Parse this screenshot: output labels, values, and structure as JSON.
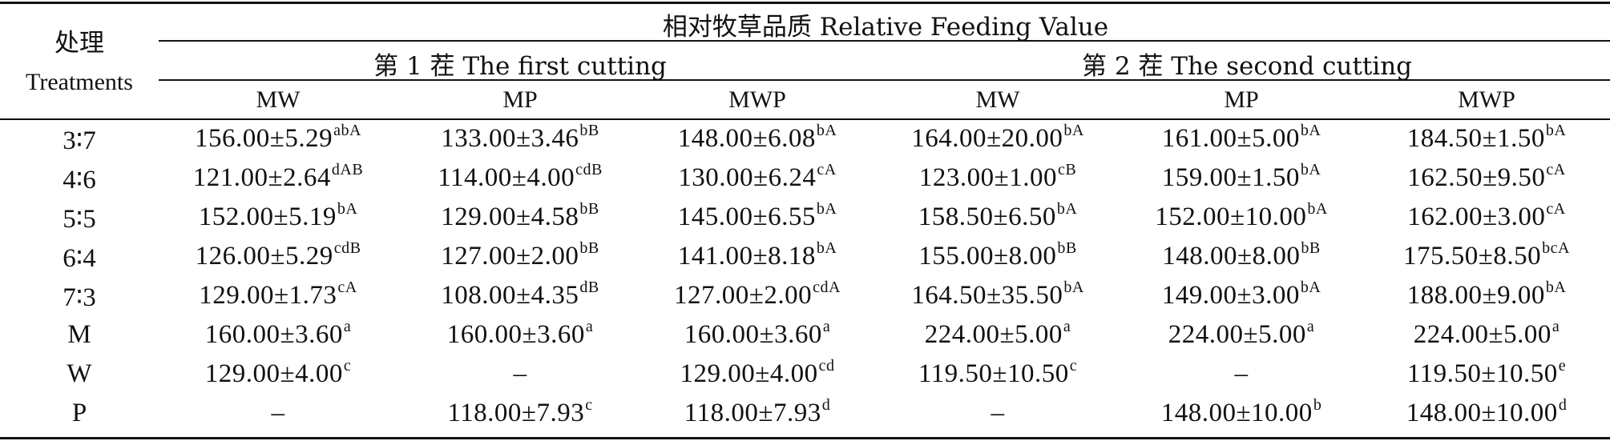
{
  "header": {
    "treatment_cn": "处理",
    "treatment_en": "Treatments",
    "main_title": "相对牧草品质 Relative Feeding Value",
    "cutting1": "第 1 茬 The first cutting",
    "cutting2": "第 2 茬 The second cutting",
    "columns": [
      "MW",
      "MP",
      "MWP",
      "MW",
      "MP",
      "MWP"
    ]
  },
  "rows": [
    {
      "label": "3∶7",
      "cells": [
        {
          "v": "156.00±5.29",
          "s": "abA"
        },
        {
          "v": "133.00±3.46",
          "s": "bB"
        },
        {
          "v": "148.00±6.08",
          "s": "bA"
        },
        {
          "v": "164.00±20.00",
          "s": "bA"
        },
        {
          "v": "161.00±5.00",
          "s": "bA"
        },
        {
          "v": "184.50±1.50",
          "s": "bA"
        }
      ]
    },
    {
      "label": "4∶6",
      "cells": [
        {
          "v": "121.00±2.64",
          "s": "dAB"
        },
        {
          "v": "114.00±4.00",
          "s": "cdB"
        },
        {
          "v": "130.00±6.24",
          "s": "cA"
        },
        {
          "v": "123.00±1.00",
          "s": "cB"
        },
        {
          "v": "159.00±1.50",
          "s": "bA"
        },
        {
          "v": "162.50±9.50",
          "s": "cA"
        }
      ]
    },
    {
      "label": "5∶5",
      "cells": [
        {
          "v": "152.00±5.19",
          "s": "bA"
        },
        {
          "v": "129.00±4.58",
          "s": "bB"
        },
        {
          "v": "145.00±6.55",
          "s": "bA"
        },
        {
          "v": "158.50±6.50",
          "s": "bA"
        },
        {
          "v": "152.00±10.00",
          "s": "bA"
        },
        {
          "v": "162.00±3.00",
          "s": "cA"
        }
      ]
    },
    {
      "label": "6∶4",
      "cells": [
        {
          "v": "126.00±5.29",
          "s": "cdB"
        },
        {
          "v": "127.00±2.00",
          "s": "bB"
        },
        {
          "v": "141.00±8.18",
          "s": "bA"
        },
        {
          "v": "155.00±8.00",
          "s": "bB"
        },
        {
          "v": "148.00±8.00",
          "s": "bB"
        },
        {
          "v": "175.50±8.50",
          "s": "bcA"
        }
      ]
    },
    {
      "label": "7∶3",
      "cells": [
        {
          "v": "129.00±1.73",
          "s": "cA"
        },
        {
          "v": "108.00±4.35",
          "s": "dB"
        },
        {
          "v": "127.00±2.00",
          "s": "cdA"
        },
        {
          "v": "164.50±35.50",
          "s": "bA"
        },
        {
          "v": "149.00±3.00",
          "s": "bA"
        },
        {
          "v": "188.00±9.00",
          "s": "bA"
        }
      ]
    },
    {
      "label": "M",
      "cells": [
        {
          "v": "160.00±3.60",
          "s": "a"
        },
        {
          "v": "160.00±3.60",
          "s": "a"
        },
        {
          "v": "160.00±3.60",
          "s": "a"
        },
        {
          "v": "224.00±5.00",
          "s": "a"
        },
        {
          "v": "224.00±5.00",
          "s": "a"
        },
        {
          "v": "224.00±5.00",
          "s": "a"
        }
      ]
    },
    {
      "label": "W",
      "cells": [
        {
          "v": "129.00±4.00",
          "s": "c"
        },
        {
          "v": "–",
          "s": ""
        },
        {
          "v": "129.00±4.00",
          "s": "cd"
        },
        {
          "v": "119.50±10.50",
          "s": "c"
        },
        {
          "v": "–",
          "s": ""
        },
        {
          "v": "119.50±10.50",
          "s": "e"
        }
      ]
    },
    {
      "label": "P",
      "cells": [
        {
          "v": "–",
          "s": ""
        },
        {
          "v": "118.00±7.93",
          "s": "c"
        },
        {
          "v": "118.00±7.93",
          "s": "d"
        },
        {
          "v": "–",
          "s": ""
        },
        {
          "v": "148.00±10.00",
          "s": "b"
        },
        {
          "v": "148.00±10.00",
          "s": "d"
        }
      ]
    }
  ]
}
